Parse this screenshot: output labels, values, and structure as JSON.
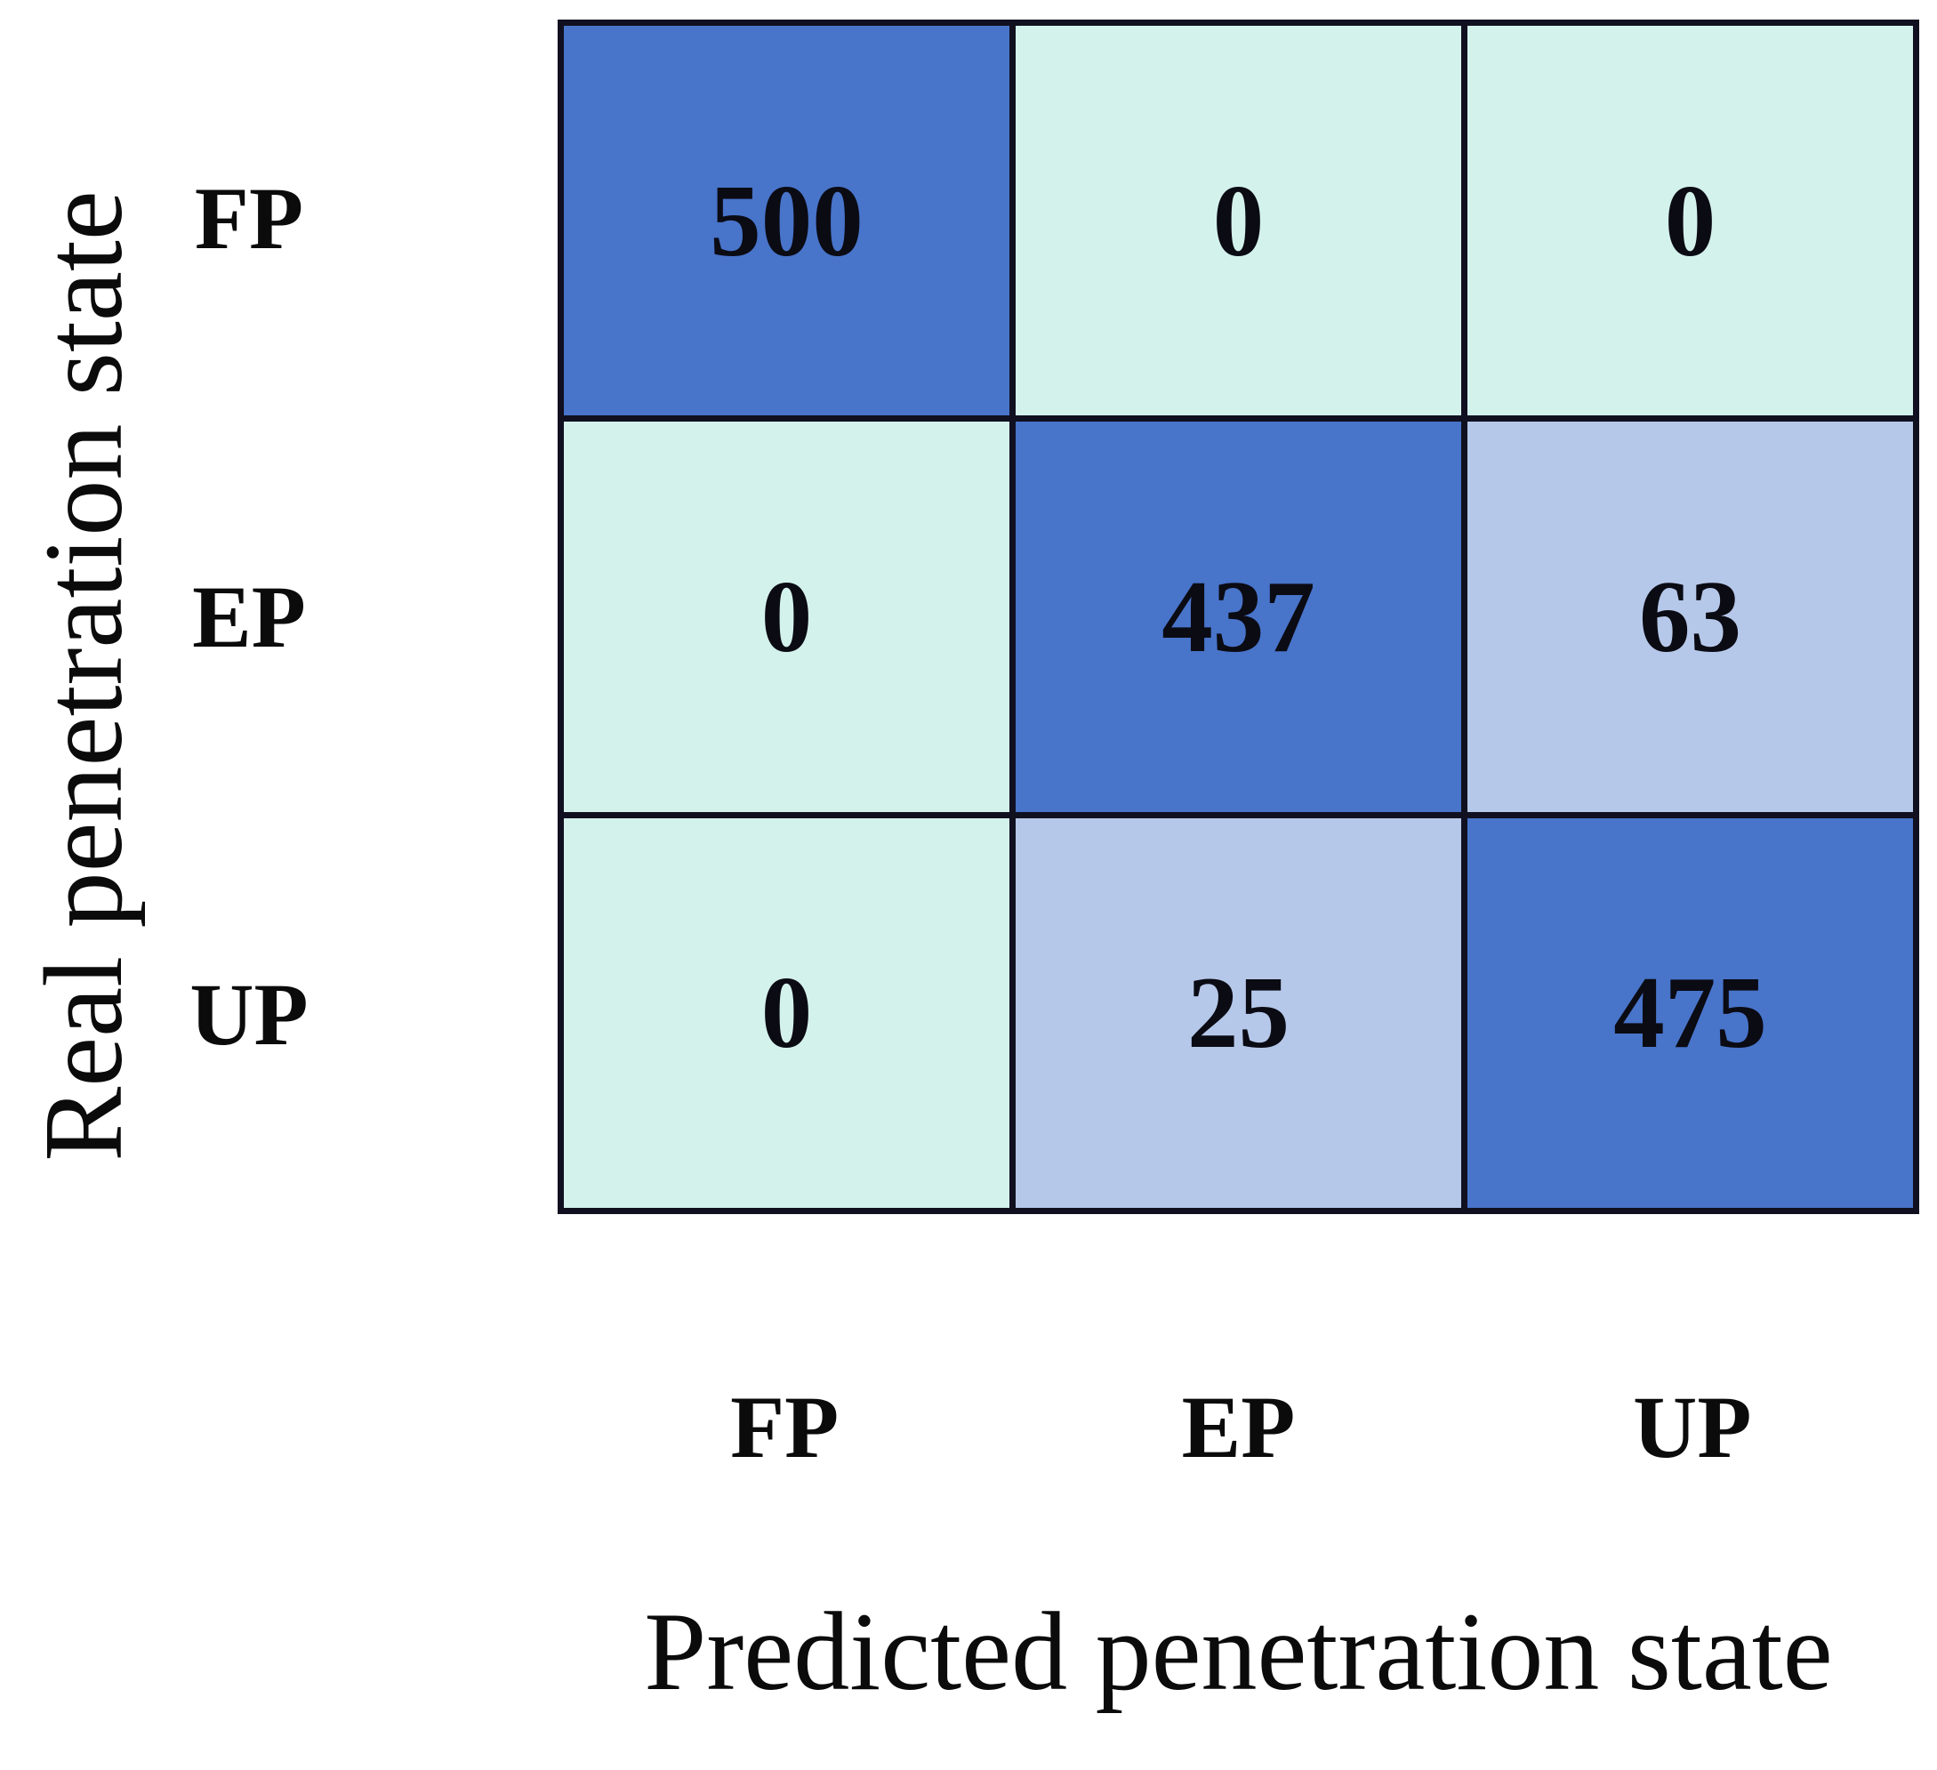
{
  "chart_data": {
    "type": "heatmap",
    "xlabel": "Predicted penetration state",
    "ylabel": "Real penetration state",
    "x_categories": [
      "FP",
      "EP",
      "UP"
    ],
    "y_categories": [
      "FP",
      "EP",
      "UP"
    ],
    "matrix": [
      [
        500,
        0,
        0
      ],
      [
        0,
        437,
        63
      ],
      [
        0,
        25,
        475
      ]
    ],
    "cell_colors": [
      [
        "#4874CA",
        "#D4F2EC",
        "#D4F2EC"
      ],
      [
        "#D4F2EC",
        "#4874CA",
        "#B6C8E9"
      ],
      [
        "#D4F2EC",
        "#B6C8E9",
        "#4874CA"
      ]
    ],
    "palette": {
      "diagonal_high": "#4874CA",
      "zero_cell": "#D4F2EC",
      "off_diagonal_low": "#B6C8E9",
      "grid_line": "#101020",
      "text": "#0b0b14"
    },
    "layout": {
      "grid_on": false,
      "legend": "none",
      "value_min": 0,
      "value_max": 500
    }
  }
}
